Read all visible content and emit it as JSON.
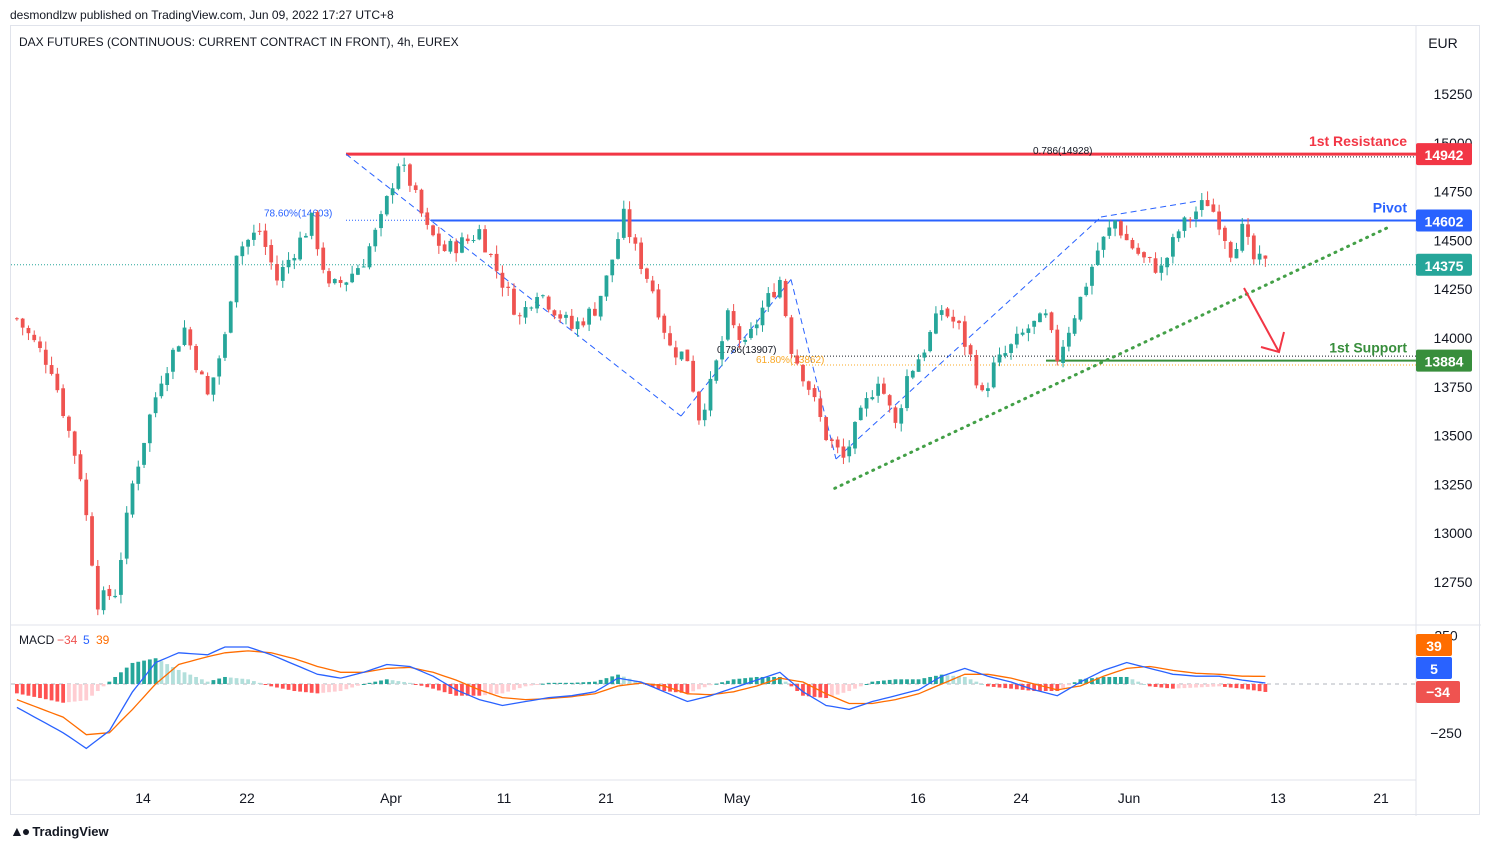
{
  "header": {
    "published": "desmondlzw published on TradingView.com, Jun 09, 2022 17:27 UTC+8",
    "symbol_title": "DAX FUTURES (CONTINUOUS: CURRENT CONTRACT IN FRONT), 4h, EUREX",
    "currency": "EUR"
  },
  "footer": {
    "logo_text": "TradingView",
    "logo_icon": "tradingview-logo-icon"
  },
  "colors": {
    "up": "#26a69a",
    "down": "#ef5350",
    "resistance": "#f23645",
    "pivot": "#2962ff",
    "support": "#388e3c",
    "last_price": "#26a69a",
    "macd_line": "#2962ff",
    "signal_line": "#ff6d00",
    "fib": "#f9a825",
    "trend": "#43a047"
  },
  "chart_data": [
    {
      "type": "candlestick",
      "title": "DAX FUTURES (CONTINUOUS: CURRENT CONTRACT IN FRONT), 4h, EUREX",
      "timeframe": "4h",
      "ylim": [
        12500,
        15500
      ],
      "y_ticks": [
        12750,
        13000,
        13250,
        13500,
        13750,
        14000,
        14250,
        14500,
        14750,
        15000,
        15250
      ],
      "x_ticks": [
        "14",
        "22",
        "Apr",
        "11",
        "21",
        "May",
        "16",
        "24",
        "Jun",
        "13",
        "21"
      ],
      "price_path": [
        [
          0,
          14100
        ],
        [
          6,
          13850
        ],
        [
          11,
          13300
        ],
        [
          14,
          12650
        ],
        [
          17,
          12700
        ],
        [
          20,
          13250
        ],
        [
          23,
          13600
        ],
        [
          25,
          13800
        ],
        [
          29,
          14050
        ],
        [
          33,
          13700
        ],
        [
          36,
          14000
        ],
        [
          38,
          14450
        ],
        [
          42,
          14550
        ],
        [
          45,
          14300
        ],
        [
          48,
          14450
        ],
        [
          51,
          14600
        ],
        [
          54,
          14250
        ],
        [
          57,
          14300
        ],
        [
          60,
          14400
        ],
        [
          63,
          14600
        ],
        [
          66,
          14900
        ],
        [
          68,
          14800
        ],
        [
          71,
          14550
        ],
        [
          74,
          14450
        ],
        [
          78,
          14500
        ],
        [
          80,
          14550
        ],
        [
          83,
          14350
        ],
        [
          87,
          14100
        ],
        [
          90,
          14250
        ],
        [
          93,
          14150
        ],
        [
          96,
          14050
        ],
        [
          100,
          14150
        ],
        [
          102,
          14300
        ],
        [
          105,
          14620
        ],
        [
          107,
          14450
        ],
        [
          110,
          14250
        ],
        [
          113,
          13950
        ],
        [
          116,
          13900
        ],
        [
          118,
          13600
        ],
        [
          120,
          13750
        ],
        [
          123,
          14100
        ],
        [
          126,
          13950
        ],
        [
          129,
          14150
        ],
        [
          132,
          14300
        ],
        [
          134,
          13950
        ],
        [
          137,
          13750
        ],
        [
          140,
          13500
        ],
        [
          143,
          13380
        ],
        [
          146,
          13600
        ],
        [
          149,
          13800
        ],
        [
          152,
          13550
        ],
        [
          154,
          13800
        ],
        [
          157,
          13950
        ],
        [
          160,
          14150
        ],
        [
          163,
          14050
        ],
        [
          165,
          13900
        ],
        [
          167,
          13700
        ],
        [
          169,
          13850
        ],
        [
          172,
          13950
        ],
        [
          175,
          14050
        ],
        [
          178,
          14100
        ],
        [
          180,
          13900
        ],
        [
          182,
          14050
        ],
        [
          184,
          14200
        ],
        [
          187,
          14450
        ],
        [
          190,
          14600
        ],
        [
          192,
          14500
        ],
        [
          195,
          14400
        ],
        [
          198,
          14350
        ],
        [
          201,
          14550
        ],
        [
          204,
          14650
        ],
        [
          206,
          14700
        ],
        [
          208,
          14600
        ],
        [
          210,
          14450
        ],
        [
          212,
          14550
        ],
        [
          214,
          14400
        ],
        [
          216,
          14375
        ]
      ],
      "last_price": 14375,
      "levels": [
        {
          "name": "1st Resistance",
          "value": 14942,
          "label": "14942"
        },
        {
          "name": "Pivot",
          "value": 14602,
          "label": "14602"
        },
        {
          "name": "1st Support",
          "value": 13884,
          "label": "13884"
        }
      ],
      "last_price_label": "14375",
      "fib_annotations": [
        {
          "text": "0.786(14928)",
          "value": 14928
        },
        {
          "text": "78.60%(14603)",
          "value": 14603
        },
        {
          "text": "0.786(13907)",
          "value": 13907
        },
        {
          "text": "61.80%(13862)",
          "value": 13862
        }
      ],
      "trendline": {
        "from": [
          142,
          13230
        ],
        "to": [
          238,
          14570
        ]
      }
    },
    {
      "type": "line",
      "title": "MACD",
      "legend": {
        "name": "MACD",
        "hist": "−34",
        "macd": "5",
        "signal": "39"
      },
      "y_ticks": [
        250,
        -250
      ],
      "y_tick_labels": [
        "250",
        "−250"
      ],
      "series": [
        {
          "name": "macd",
          "points": [
            [
              0,
              -120
            ],
            [
              8,
              -250
            ],
            [
              12,
              -330
            ],
            [
              16,
              -240
            ],
            [
              20,
              -40
            ],
            [
              24,
              110
            ],
            [
              28,
              160
            ],
            [
              33,
              150
            ],
            [
              36,
              190
            ],
            [
              40,
              190
            ],
            [
              44,
              150
            ],
            [
              48,
              100
            ],
            [
              52,
              50
            ],
            [
              56,
              30
            ],
            [
              60,
              60
            ],
            [
              64,
              100
            ],
            [
              68,
              90
            ],
            [
              72,
              40
            ],
            [
              76,
              -30
            ],
            [
              80,
              -80
            ],
            [
              84,
              -110
            ],
            [
              88,
              -90
            ],
            [
              92,
              -70
            ],
            [
              96,
              -60
            ],
            [
              100,
              -40
            ],
            [
              104,
              30
            ],
            [
              108,
              10
            ],
            [
              112,
              -40
            ],
            [
              116,
              -90
            ],
            [
              120,
              -60
            ],
            [
              124,
              -20
            ],
            [
              128,
              20
            ],
            [
              132,
              60
            ],
            [
              136,
              -40
            ],
            [
              140,
              -110
            ],
            [
              144,
              -130
            ],
            [
              148,
              -90
            ],
            [
              152,
              -60
            ],
            [
              156,
              -30
            ],
            [
              160,
              40
            ],
            [
              164,
              80
            ],
            [
              168,
              40
            ],
            [
              172,
              10
            ],
            [
              176,
              -30
            ],
            [
              180,
              -60
            ],
            [
              184,
              10
            ],
            [
              188,
              70
            ],
            [
              192,
              110
            ],
            [
              196,
              80
            ],
            [
              200,
              50
            ],
            [
              204,
              40
            ],
            [
              208,
              40
            ],
            [
              212,
              20
            ],
            [
              216,
              5
            ]
          ]
        },
        {
          "name": "signal",
          "points": [
            [
              0,
              -80
            ],
            [
              8,
              -170
            ],
            [
              12,
              -260
            ],
            [
              16,
              -250
            ],
            [
              20,
              -130
            ],
            [
              24,
              0
            ],
            [
              28,
              100
            ],
            [
              33,
              140
            ],
            [
              36,
              160
            ],
            [
              40,
              170
            ],
            [
              44,
              160
            ],
            [
              48,
              130
            ],
            [
              52,
              90
            ],
            [
              56,
              60
            ],
            [
              60,
              60
            ],
            [
              64,
              80
            ],
            [
              68,
              85
            ],
            [
              72,
              60
            ],
            [
              76,
              20
            ],
            [
              80,
              -30
            ],
            [
              84,
              -70
            ],
            [
              88,
              -80
            ],
            [
              92,
              -75
            ],
            [
              96,
              -65
            ],
            [
              100,
              -50
            ],
            [
              104,
              -10
            ],
            [
              108,
              5
            ],
            [
              112,
              -10
            ],
            [
              116,
              -50
            ],
            [
              120,
              -55
            ],
            [
              124,
              -40
            ],
            [
              128,
              -10
            ],
            [
              132,
              30
            ],
            [
              136,
              10
            ],
            [
              140,
              -50
            ],
            [
              144,
              -100
            ],
            [
              148,
              -100
            ],
            [
              152,
              -80
            ],
            [
              156,
              -50
            ],
            [
              160,
              0
            ],
            [
              164,
              50
            ],
            [
              168,
              50
            ],
            [
              172,
              30
            ],
            [
              176,
              0
            ],
            [
              180,
              -30
            ],
            [
              184,
              -10
            ],
            [
              188,
              40
            ],
            [
              192,
              80
            ],
            [
              196,
              90
            ],
            [
              200,
              70
            ],
            [
              204,
              55
            ],
            [
              208,
              50
            ],
            [
              212,
              40
            ],
            [
              216,
              39
            ]
          ]
        }
      ]
    }
  ]
}
